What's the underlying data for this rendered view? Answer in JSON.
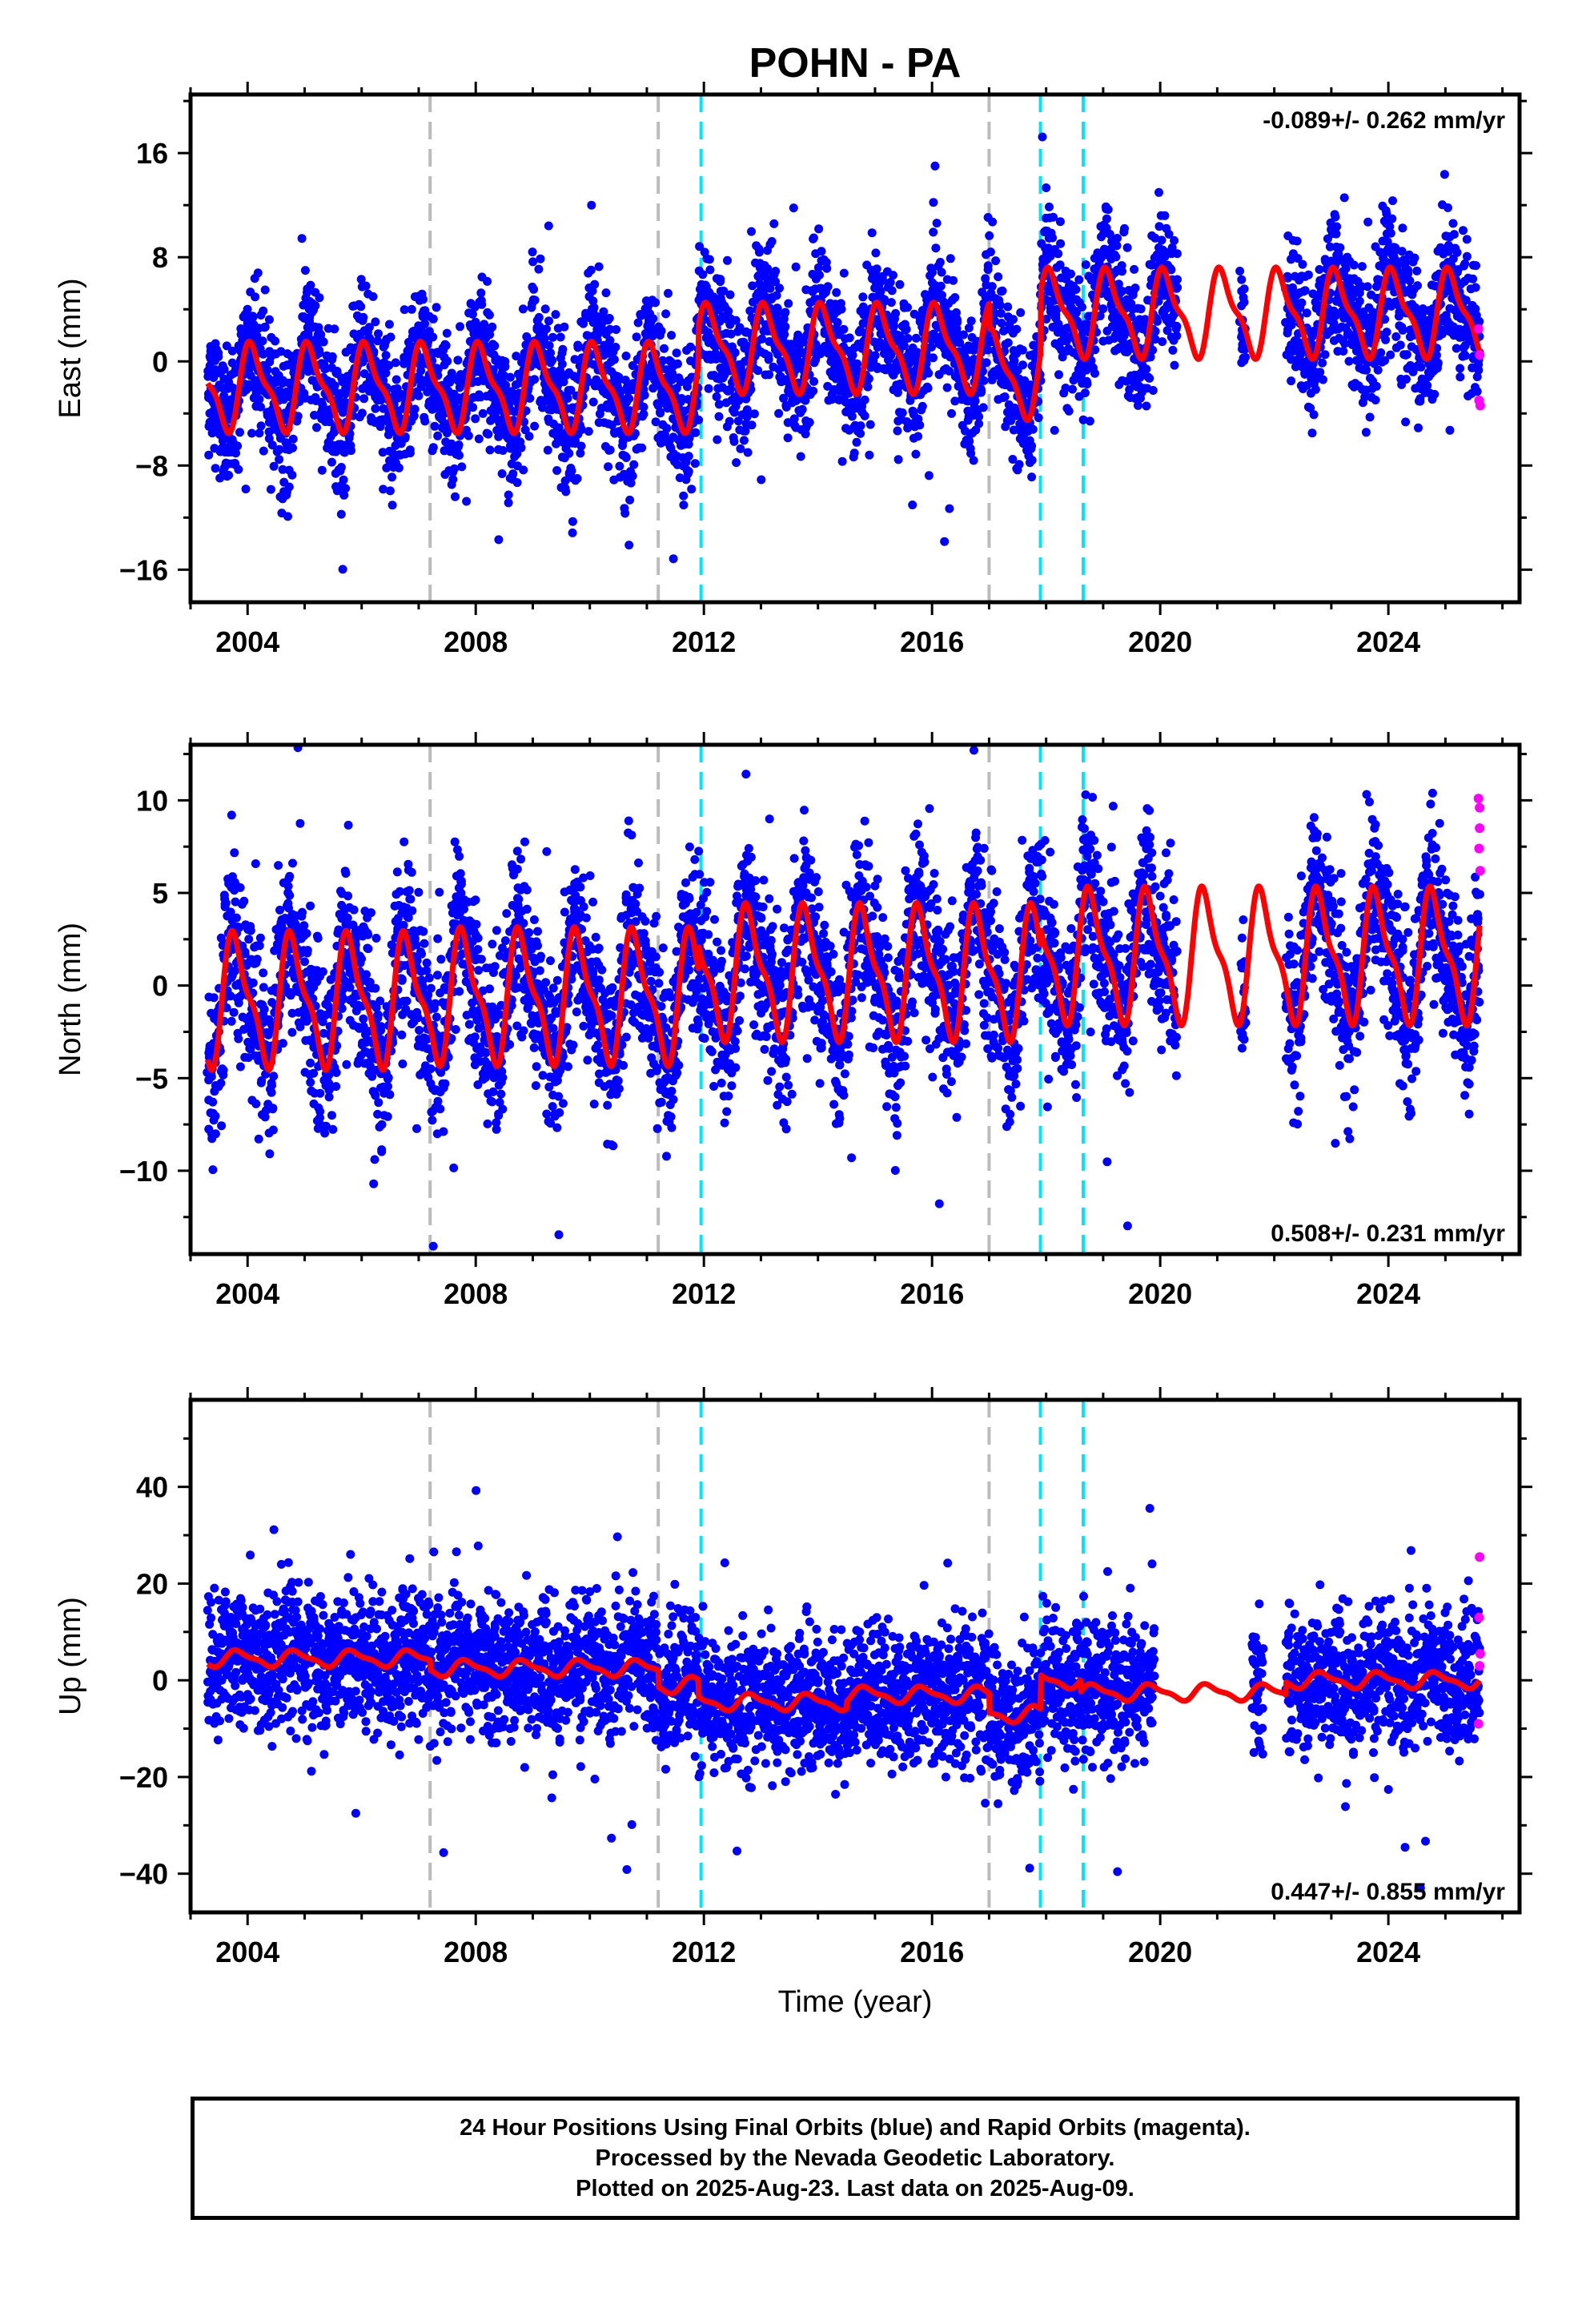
{
  "title": "POHN - PA",
  "xlabel": "Time (year)",
  "chart_data": [
    {
      "type": "scatter",
      "panel": "east",
      "ylabel": "East (mm)",
      "rate_label": "-0.089+/- 0.262 mm/yr",
      "xlim": [
        2003.0,
        2026.3
      ],
      "ylim": [
        -18.5,
        20.5
      ],
      "x_ticks": [
        2004,
        2008,
        2012,
        2016,
        2020,
        2024
      ],
      "y_ticks": [
        -16,
        -8,
        0,
        8,
        16
      ],
      "data_start": 2003.3,
      "data_end": 2025.6,
      "gaps": [
        [
          2020.3,
          2021.4
        ],
        [
          2021.5,
          2022.2
        ]
      ],
      "seasonal": {
        "amplitude": 3.0,
        "phase_year": 0.85
      },
      "trend_segments": [
        {
          "from": 2003.3,
          "to": 2011.9,
          "offset": -2.0
        },
        {
          "from": 2011.9,
          "to": 2017.0,
          "offset": 1.0
        },
        {
          "from": 2017.0,
          "to": 2017.9,
          "offset": -1.0
        },
        {
          "from": 2017.9,
          "to": 2025.6,
          "offset": 3.7
        }
      ],
      "scatter_sd": 2.6,
      "rapid_points": [
        [
          2025.58,
          2.5
        ],
        [
          2025.6,
          0.5
        ],
        [
          2025.59,
          -3.0
        ],
        [
          2025.61,
          -3.4
        ]
      ]
    },
    {
      "type": "scatter",
      "panel": "north",
      "ylabel": "North (mm)",
      "rate_label": "0.508+/- 0.231 mm/yr",
      "xlim": [
        2003.0,
        2026.3
      ],
      "ylim": [
        -14.5,
        13.0
      ],
      "x_ticks": [
        2004,
        2008,
        2012,
        2016,
        2020,
        2024
      ],
      "y_ticks": [
        -10,
        -5,
        0,
        5,
        10
      ],
      "data_start": 2003.3,
      "data_end": 2025.6,
      "gaps": [
        [
          2020.3,
          2021.4
        ],
        [
          2021.5,
          2022.2
        ]
      ],
      "seasonal": {
        "amplitude": 3.2,
        "phase_year": 0.55
      },
      "trend_segments": [
        {
          "from": 2003.3,
          "to": 2007.2,
          "offset": -0.8
        },
        {
          "from": 2007.2,
          "to": 2011.9,
          "offset": -0.6
        },
        {
          "from": 2011.9,
          "to": 2017.9,
          "offset": 0.7
        },
        {
          "from": 2017.9,
          "to": 2025.6,
          "offset": 1.6
        }
      ],
      "scatter_sd": 2.3,
      "rapid_points": [
        [
          2025.58,
          10.1
        ],
        [
          2025.6,
          8.5
        ],
        [
          2025.59,
          7.4
        ],
        [
          2025.61,
          6.2
        ],
        [
          2025.6,
          9.6
        ]
      ]
    },
    {
      "type": "scatter",
      "panel": "up",
      "ylabel": "Up (mm)",
      "rate_label": "0.447+/- 0.855 mm/yr",
      "xlim": [
        2003.0,
        2026.3
      ],
      "ylim": [
        -48.0,
        58.0
      ],
      "x_ticks": [
        2004,
        2008,
        2012,
        2016,
        2020,
        2024
      ],
      "y_ticks": [
        -40,
        -20,
        0,
        20,
        40
      ],
      "data_start": 2003.3,
      "data_end": 2025.6,
      "gaps": [
        [
          2019.9,
          2021.6
        ],
        [
          2021.8,
          2022.2
        ]
      ],
      "seasonal": {
        "amplitude": 1.5,
        "phase_year": 0.6
      },
      "trend_segments": [
        {
          "from": 2003.3,
          "to": 2007.2,
          "offset": 4.5
        },
        {
          "from": 2007.2,
          "to": 2011.2,
          "offset": 2.5
        },
        {
          "from": 2011.2,
          "to": 2011.9,
          "offset": -1.0
        },
        {
          "from": 2011.9,
          "to": 2014.5,
          "offset": -4.5
        },
        {
          "from": 2014.5,
          "to": 2017.0,
          "offset": -3.0
        },
        {
          "from": 2017.0,
          "to": 2017.9,
          "offset": -7.0
        },
        {
          "from": 2017.9,
          "to": 2018.6,
          "offset": 0.0
        },
        {
          "from": 2018.6,
          "to": 2022.2,
          "offset": -2.5
        },
        {
          "from": 2022.2,
          "to": 2025.6,
          "offset": 0.0
        }
      ],
      "scatter_sd": 7.0,
      "rapid_points": [
        [
          2025.6,
          25.5
        ],
        [
          2025.59,
          13.0
        ],
        [
          2025.61,
          5.5
        ],
        [
          2025.6,
          3.0
        ],
        [
          2025.58,
          -9.0
        ]
      ]
    }
  ],
  "equipment_changes_gray": [
    2007.2,
    2011.2,
    2017.0
  ],
  "earthquakes_cyan": [
    2011.95,
    2017.9,
    2018.65
  ],
  "colors": {
    "final_orbits": "#0000ff",
    "rapid_orbits": "#ff00ff",
    "model": "#ff0000",
    "gray_line": "#bbbbbb",
    "cyan_line": "#00e5ff"
  },
  "caption": {
    "line1": "24 Hour Positions Using Final Orbits (blue) and Rapid Orbits (magenta).",
    "line2": "Processed by the Nevada Geodetic Laboratory.",
    "line3": "Plotted on 2025-Aug-23. Last data on 2025-Aug-09."
  }
}
